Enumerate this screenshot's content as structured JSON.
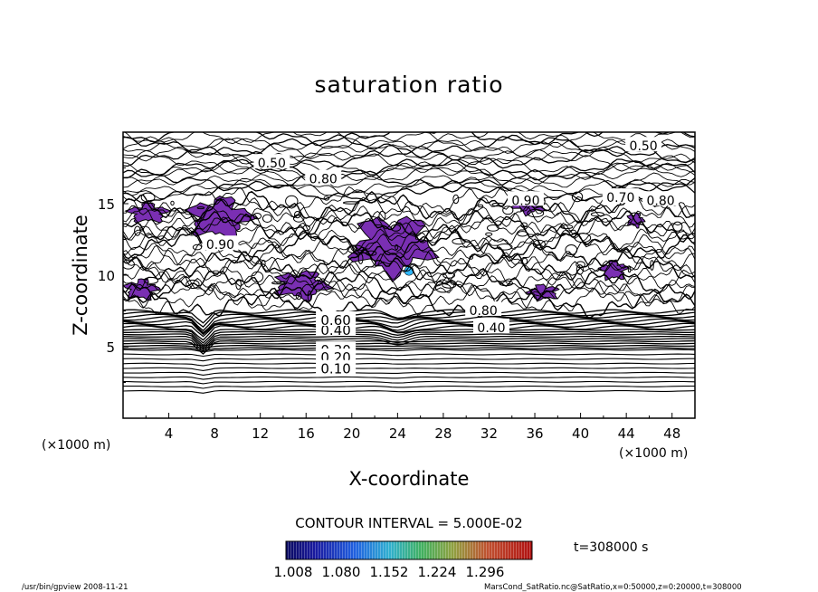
{
  "chart_data": {
    "type": "contour",
    "title": "saturation ratio",
    "xlabel": "X-coordinate",
    "ylabel": "Z-coordinate",
    "x_unit": "(×1000 m)",
    "y_unit": "(×1000 m)",
    "xlim": [
      0,
      50
    ],
    "ylim": [
      0,
      20
    ],
    "x_ticks": [
      4,
      8,
      12,
      16,
      20,
      24,
      28,
      32,
      36,
      40,
      44,
      48
    ],
    "y_ticks": [
      5,
      10,
      15
    ],
    "horizontal_contour_labels": [
      {
        "z": 4.8,
        "label": "0.30"
      },
      {
        "z": 4.3,
        "label": "0.20"
      },
      {
        "z": 3.5,
        "label": "0.10"
      },
      {
        "z": 6.2,
        "label": "0.40"
      },
      {
        "z": 6.9,
        "label": "0.60"
      }
    ],
    "upper_contour_labels": [
      {
        "x": 13,
        "z": 17.9,
        "label": "0.50"
      },
      {
        "x": 45.5,
        "z": 19.1,
        "label": "0.50"
      },
      {
        "x": 17.5,
        "z": 16.8,
        "label": "0.80"
      },
      {
        "x": 35.2,
        "z": 15.3,
        "label": "0.90"
      },
      {
        "x": 43.5,
        "z": 15.5,
        "label": "0.70"
      },
      {
        "x": 47.0,
        "z": 15.3,
        "label": "0.80"
      },
      {
        "x": 8.5,
        "z": 12.2,
        "label": "0.90"
      },
      {
        "x": 31.5,
        "z": 7.6,
        "label": "0.80"
      },
      {
        "x": 32.2,
        "z": 6.4,
        "label": "0.40"
      }
    ],
    "supersaturated_regions": [
      {
        "x": [
          0.3,
          4.1
        ],
        "z": [
          13.6,
          15.1
        ]
      },
      {
        "x": [
          5.4,
          11.5
        ],
        "z": [
          12.4,
          15.6
        ]
      },
      {
        "x": [
          13.0,
          18.2
        ],
        "z": [
          8.2,
          10.4
        ]
      },
      {
        "x": [
          19.6,
          27.5
        ],
        "z": [
          9.8,
          14.4
        ]
      },
      {
        "x": [
          34.0,
          37.0
        ],
        "z": [
          14.2,
          15.6
        ]
      },
      {
        "x": [
          35.3,
          38.2
        ],
        "z": [
          8.2,
          9.4
        ]
      },
      {
        "x": [
          41.6,
          44.2
        ],
        "z": [
          9.6,
          11.1
        ]
      },
      {
        "x": [
          0.0,
          3.2
        ],
        "z": [
          8.2,
          9.8
        ]
      },
      {
        "x": [
          44.0,
          45.6
        ],
        "z": [
          13.3,
          14.4
        ]
      }
    ],
    "colorbar": {
      "tick_labels": [
        "1.008",
        "1.080",
        "1.152",
        "1.224",
        "1.296"
      ],
      "range": [
        1.008,
        1.296
      ]
    },
    "fill_color": "#7a2fb3"
  },
  "contour_interval": "CONTOUR INTERVAL = 5.000E-02",
  "time_label": "t=308000 s",
  "footer_left": "/usr/bin/gpview  2008-11-21",
  "footer_right": "MarsCond_SatRatio.nc@SatRatio,x=0:50000,z=0:20000,t=308000"
}
